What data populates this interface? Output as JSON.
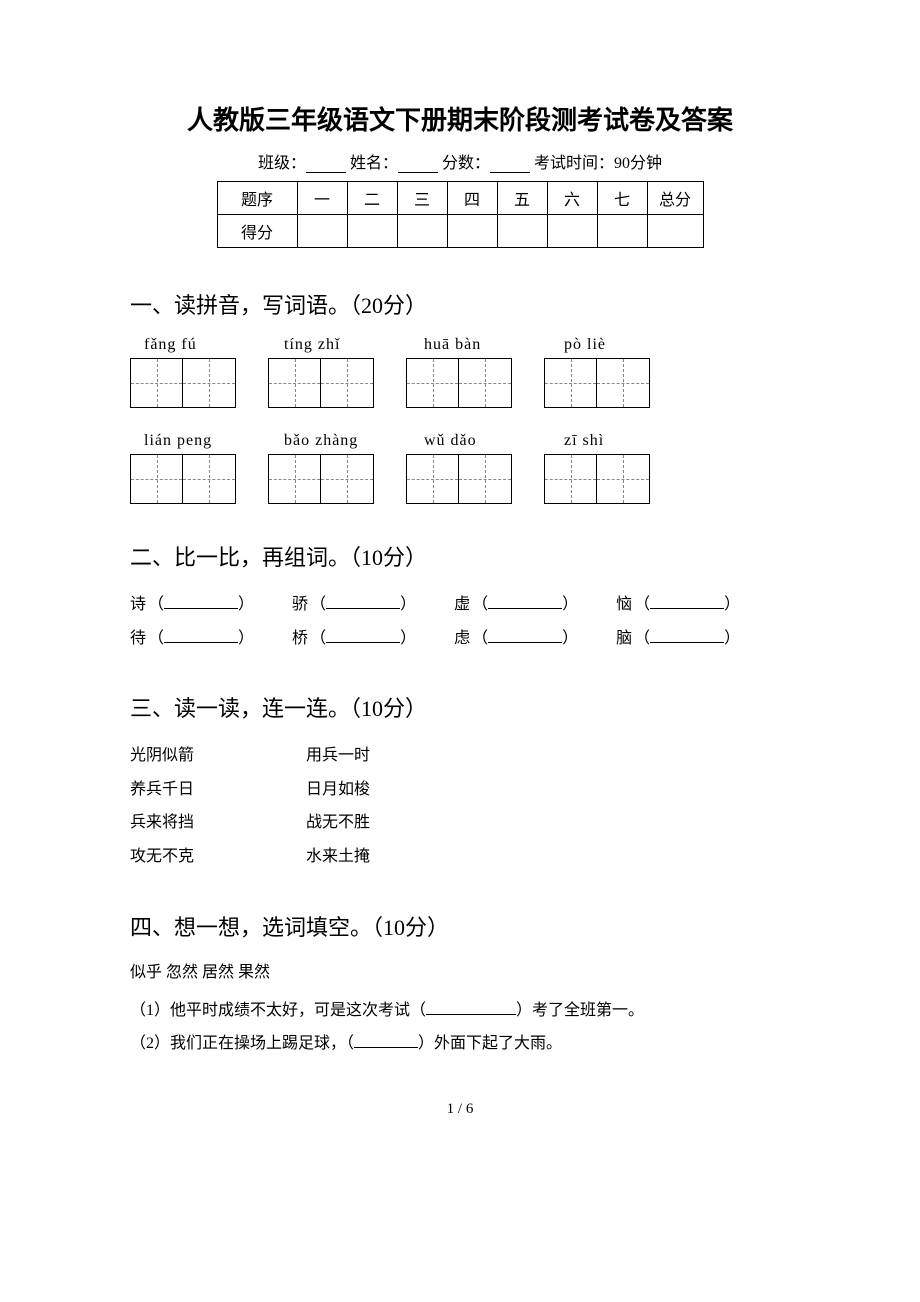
{
  "document": {
    "title": "人教版三年级语文下册期末阶段测考试卷及答案",
    "meta": {
      "class_label": "班级：",
      "name_label": "姓名：",
      "score_label": "分数：",
      "time_label": "考试时间：90分钟"
    },
    "score_table": {
      "row_header_1": "题序",
      "row_header_2": "得分",
      "columns": [
        "一",
        "二",
        "三",
        "四",
        "五",
        "六",
        "七",
        "总分"
      ]
    },
    "section1": {
      "heading": "一、读拼音，写词语。（20分）",
      "pinyin_row1": [
        "fǎng fú",
        "tíng zhǐ",
        "huā  bàn",
        "pò  liè"
      ],
      "pinyin_row2": [
        "lián peng",
        "bǎo zhàng",
        "wǔ  dǎo",
        "zī  shì"
      ]
    },
    "section2": {
      "heading": "二、比一比，再组词。（10分）",
      "rows": [
        [
          "诗",
          "骄",
          "虚",
          "恼"
        ],
        [
          "待",
          "桥",
          "虑",
          "脑"
        ]
      ]
    },
    "section3": {
      "heading": "三、读一读，连一连。（10分）",
      "pairs": [
        {
          "left": "光阴似箭",
          "right": "用兵一时"
        },
        {
          "left": "养兵千日",
          "right": "日月如梭"
        },
        {
          "left": "兵来将挡",
          "right": "战无不胜"
        },
        {
          "left": "攻无不克",
          "right": "水来土掩"
        }
      ]
    },
    "section4": {
      "heading": "四、想一想，选词填空。（10分）",
      "choices": "似乎  忽然  居然  果然",
      "q1_prefix": "（1）他平时成绩不太好，可是这次考试（",
      "q1_suffix": "）考了全班第一。",
      "q2_prefix": "（2）我们正在操场上踢足球，（",
      "q2_suffix": "）外面下起了大雨。"
    },
    "page_number": "1 / 6"
  }
}
